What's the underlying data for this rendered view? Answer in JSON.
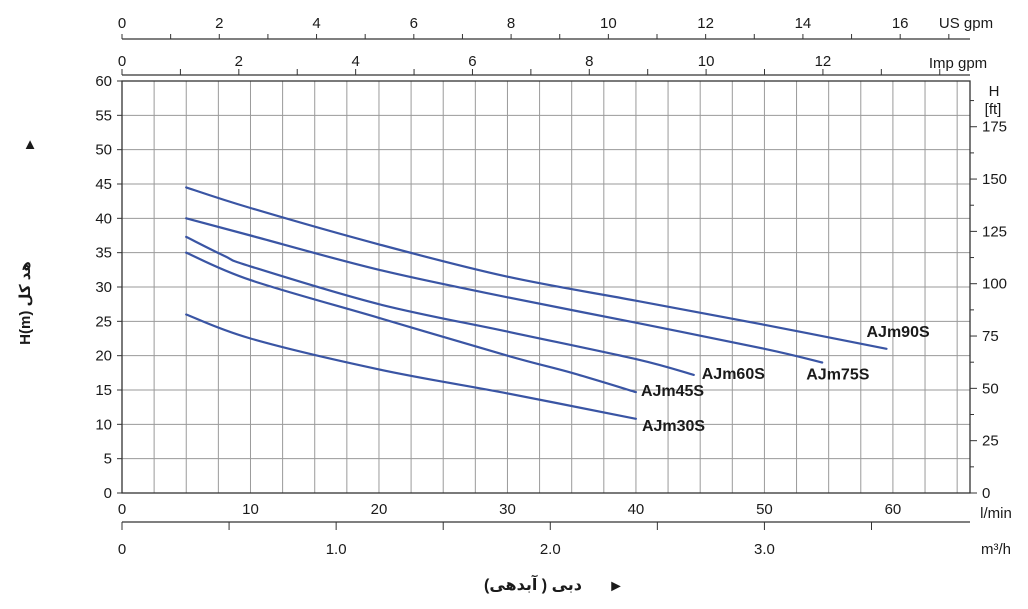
{
  "chart_data": {
    "type": "line",
    "title": "",
    "ylabel": "H(m) هد کل",
    "ylabel_arrow": "▲",
    "ylim": [
      0,
      60
    ],
    "y_ticks": [
      0,
      5,
      10,
      15,
      20,
      25,
      30,
      35,
      40,
      45,
      50,
      55,
      60
    ],
    "y_right_label_lines": [
      "H",
      "[ft]"
    ],
    "y_right_ticks": [
      0,
      25,
      50,
      75,
      100,
      125,
      150,
      175
    ],
    "xlabel": "دبی ( آبدهی)",
    "xlabel_arrow": "►",
    "xlim": [
      0,
      66
    ],
    "x_unit": "l/min",
    "x_ticks": [
      0,
      10,
      20,
      30,
      40,
      50,
      60
    ],
    "x_m3h_unit": "m³/h",
    "x_m3h_ticks": [
      0,
      1.0,
      2.0,
      3.0
    ],
    "x_m3h_tick_labels": [
      "0",
      "1.0",
      "2.0",
      "3.0"
    ],
    "x_usgpm_unit": "US gpm",
    "x_usgpm_ticks": [
      0,
      2,
      4,
      6,
      8,
      10,
      12,
      14,
      16
    ],
    "x_impgpm_unit": "Imp gpm",
    "x_impgpm_ticks": [
      0,
      2,
      4,
      6,
      8,
      10,
      12
    ],
    "grid": true,
    "series": [
      {
        "name": "AJm90S",
        "color": "#3a55a4",
        "points": [
          [
            5,
            44.5
          ],
          [
            10,
            41.5
          ],
          [
            20,
            36.2
          ],
          [
            30,
            31.5
          ],
          [
            40,
            28
          ],
          [
            50,
            24.5
          ],
          [
            59.5,
            21
          ]
        ]
      },
      {
        "name": "AJm75S",
        "color": "#3a55a4",
        "points": [
          [
            5,
            40
          ],
          [
            10,
            37.5
          ],
          [
            20,
            32.5
          ],
          [
            30,
            28.5
          ],
          [
            40,
            24.8
          ],
          [
            50,
            21
          ],
          [
            54.5,
            19
          ]
        ]
      },
      {
        "name": "AJm60S",
        "color": "#3a55a4",
        "points": [
          [
            5,
            37.3
          ],
          [
            8,
            34.5
          ],
          [
            10,
            33
          ],
          [
            20,
            27.5
          ],
          [
            30,
            23.5
          ],
          [
            40,
            19.5
          ],
          [
            44.5,
            17.2
          ]
        ]
      },
      {
        "name": "AJm45S",
        "color": "#3a55a4",
        "points": [
          [
            5,
            35
          ],
          [
            10,
            31
          ],
          [
            20,
            25.5
          ],
          [
            30,
            20
          ],
          [
            35,
            17.5
          ],
          [
            40,
            14.7
          ]
        ]
      },
      {
        "name": "AJm30S",
        "color": "#3a55a4",
        "points": [
          [
            5,
            26
          ],
          [
            10,
            22.5
          ],
          [
            20,
            18
          ],
          [
            30,
            14.5
          ],
          [
            40,
            10.8
          ]
        ]
      }
    ]
  }
}
